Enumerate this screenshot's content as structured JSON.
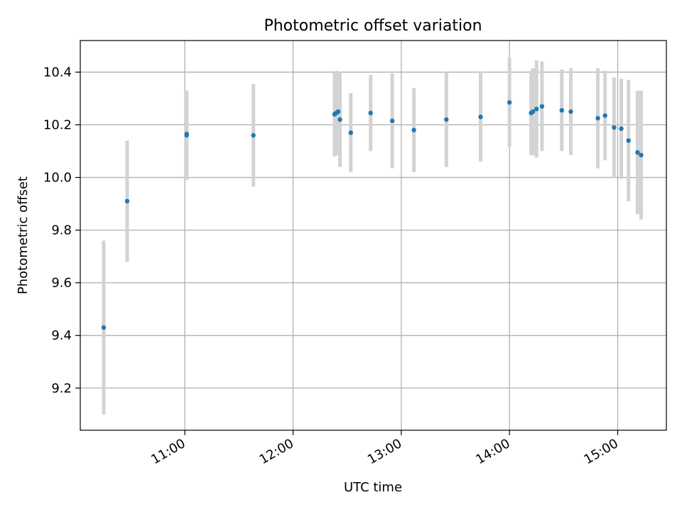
{
  "chart_data": {
    "type": "scatter",
    "title": "Photometric offset variation",
    "xlabel": "UTC time",
    "ylabel": "Photometric offset",
    "x_axis": {
      "type": "time",
      "min": "10:02",
      "max": "15:27",
      "ticks": [
        "11:00",
        "12:00",
        "13:00",
        "14:00",
        "15:00"
      ]
    },
    "y_axis": {
      "min": 9.04,
      "max": 10.52,
      "ticks": [
        9.2,
        9.4,
        9.6,
        9.8,
        10.0,
        10.2,
        10.4
      ],
      "tick_labels": [
        "9.2",
        "9.4",
        "9.6",
        "9.8",
        "10.0",
        "10.2",
        "10.4"
      ]
    },
    "grid": true,
    "point_color": "#1f77b4",
    "errorbar_color": "#d3d3d3",
    "points": [
      {
        "x": "10:15",
        "y": 9.43,
        "yerr": 0.33
      },
      {
        "x": "10:28",
        "y": 9.91,
        "yerr": 0.23
      },
      {
        "x": "11:01",
        "y": 10.16,
        "yerr": 0.17
      },
      {
        "x": "11:01",
        "y": 10.165,
        "yerr": 0.16
      },
      {
        "x": "11:38",
        "y": 10.16,
        "yerr": 0.195
      },
      {
        "x": "12:23",
        "y": 10.24,
        "yerr": 0.16
      },
      {
        "x": "12:24",
        "y": 10.245,
        "yerr": 0.16
      },
      {
        "x": "12:25",
        "y": 10.25,
        "yerr": 0.15
      },
      {
        "x": "12:26",
        "y": 10.22,
        "yerr": 0.18
      },
      {
        "x": "12:32",
        "y": 10.17,
        "yerr": 0.15
      },
      {
        "x": "12:43",
        "y": 10.245,
        "yerr": 0.145
      },
      {
        "x": "12:55",
        "y": 10.215,
        "yerr": 0.18
      },
      {
        "x": "13:07",
        "y": 10.18,
        "yerr": 0.16
      },
      {
        "x": "13:25",
        "y": 10.22,
        "yerr": 0.18
      },
      {
        "x": "13:44",
        "y": 10.23,
        "yerr": 0.17
      },
      {
        "x": "14:00",
        "y": 10.285,
        "yerr": 0.17
      },
      {
        "x": "14:12",
        "y": 10.245,
        "yerr": 0.16
      },
      {
        "x": "14:13",
        "y": 10.25,
        "yerr": 0.165
      },
      {
        "x": "14:15",
        "y": 10.26,
        "yerr": 0.185
      },
      {
        "x": "14:18",
        "y": 10.27,
        "yerr": 0.17
      },
      {
        "x": "14:29",
        "y": 10.255,
        "yerr": 0.155
      },
      {
        "x": "14:34",
        "y": 10.25,
        "yerr": 0.165
      },
      {
        "x": "14:49",
        "y": 10.225,
        "yerr": 0.19
      },
      {
        "x": "14:53",
        "y": 10.235,
        "yerr": 0.17
      },
      {
        "x": "14:58",
        "y": 10.19,
        "yerr": 0.19
      },
      {
        "x": "15:02",
        "y": 10.185,
        "yerr": 0.19
      },
      {
        "x": "15:06",
        "y": 10.14,
        "yerr": 0.23
      },
      {
        "x": "15:11",
        "y": 10.095,
        "yerr": 0.235
      },
      {
        "x": "15:13",
        "y": 10.085,
        "yerr": 0.245
      }
    ]
  }
}
